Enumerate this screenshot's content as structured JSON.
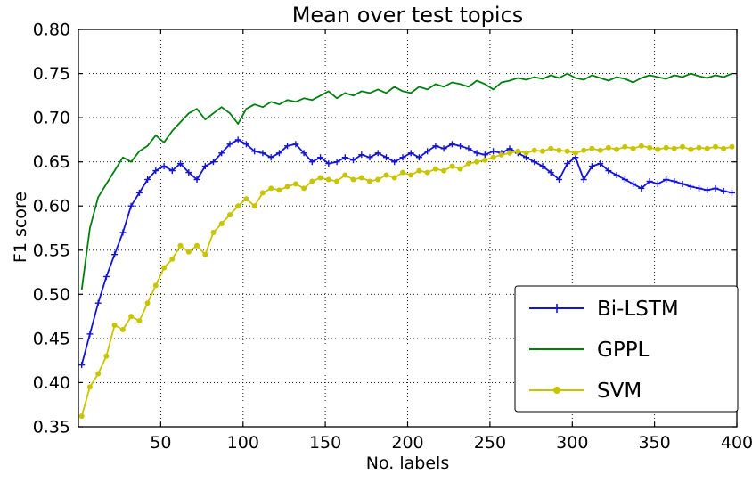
{
  "figure": {
    "background": "#ffffff"
  },
  "chart_data": {
    "type": "line",
    "title": "Mean over test topics",
    "xlabel": "No. labels",
    "ylabel": "F1 score",
    "xlim": [
      0,
      400
    ],
    "ylim": [
      0.35,
      0.8
    ],
    "xticks": [
      50,
      100,
      150,
      200,
      250,
      300,
      350,
      400
    ],
    "yticks": [
      0.35,
      0.4,
      0.45,
      0.5,
      0.55,
      0.6,
      0.65,
      0.7,
      0.75,
      0.8
    ],
    "grid": true,
    "legend_position": "lower right",
    "x": [
      2,
      7,
      12,
      17,
      22,
      27,
      32,
      37,
      42,
      47,
      52,
      57,
      62,
      67,
      72,
      77,
      82,
      87,
      92,
      97,
      102,
      107,
      112,
      117,
      122,
      127,
      132,
      137,
      142,
      147,
      152,
      157,
      162,
      167,
      172,
      177,
      182,
      187,
      192,
      197,
      202,
      207,
      212,
      217,
      222,
      227,
      232,
      237,
      242,
      247,
      252,
      257,
      262,
      267,
      272,
      277,
      282,
      287,
      292,
      297,
      302,
      307,
      312,
      317,
      322,
      327,
      332,
      337,
      342,
      347,
      352,
      357,
      362,
      367,
      372,
      377,
      382,
      387,
      392,
      397
    ],
    "series": [
      {
        "name": "Bi-LSTM",
        "color": "#1414d9",
        "marker": "plus",
        "values": [
          0.42,
          0.455,
          0.49,
          0.52,
          0.545,
          0.57,
          0.6,
          0.615,
          0.63,
          0.64,
          0.645,
          0.64,
          0.648,
          0.638,
          0.63,
          0.645,
          0.65,
          0.66,
          0.67,
          0.675,
          0.67,
          0.662,
          0.66,
          0.655,
          0.66,
          0.668,
          0.67,
          0.66,
          0.65,
          0.655,
          0.648,
          0.65,
          0.655,
          0.652,
          0.658,
          0.655,
          0.66,
          0.655,
          0.65,
          0.655,
          0.66,
          0.655,
          0.662,
          0.668,
          0.665,
          0.67,
          0.668,
          0.665,
          0.66,
          0.658,
          0.662,
          0.66,
          0.665,
          0.66,
          0.655,
          0.65,
          0.645,
          0.638,
          0.63,
          0.648,
          0.655,
          0.63,
          0.645,
          0.648,
          0.64,
          0.635,
          0.63,
          0.625,
          0.62,
          0.628,
          0.625,
          0.63,
          0.628,
          0.625,
          0.622,
          0.62,
          0.618,
          0.62,
          0.617,
          0.615
        ]
      },
      {
        "name": "GPPL",
        "color": "#00800e",
        "marker": "none",
        "values": [
          0.505,
          0.575,
          0.61,
          0.625,
          0.64,
          0.655,
          0.65,
          0.662,
          0.668,
          0.68,
          0.672,
          0.685,
          0.695,
          0.705,
          0.71,
          0.698,
          0.705,
          0.712,
          0.705,
          0.693,
          0.71,
          0.715,
          0.712,
          0.718,
          0.715,
          0.72,
          0.718,
          0.722,
          0.72,
          0.725,
          0.73,
          0.722,
          0.728,
          0.725,
          0.73,
          0.728,
          0.732,
          0.728,
          0.735,
          0.73,
          0.728,
          0.735,
          0.732,
          0.738,
          0.735,
          0.74,
          0.738,
          0.735,
          0.742,
          0.738,
          0.732,
          0.74,
          0.742,
          0.745,
          0.743,
          0.746,
          0.744,
          0.748,
          0.745,
          0.75,
          0.745,
          0.743,
          0.748,
          0.745,
          0.742,
          0.746,
          0.744,
          0.74,
          0.745,
          0.748,
          0.746,
          0.744,
          0.748,
          0.746,
          0.75,
          0.747,
          0.745,
          0.748,
          0.746,
          0.75
        ]
      },
      {
        "name": "SVM",
        "color": "#c9c400",
        "marker": "circle",
        "values": [
          0.362,
          0.395,
          0.41,
          0.43,
          0.465,
          0.46,
          0.475,
          0.47,
          0.49,
          0.51,
          0.53,
          0.54,
          0.555,
          0.548,
          0.555,
          0.545,
          0.57,
          0.58,
          0.59,
          0.6,
          0.608,
          0.6,
          0.615,
          0.62,
          0.618,
          0.622,
          0.625,
          0.62,
          0.628,
          0.632,
          0.63,
          0.628,
          0.635,
          0.63,
          0.632,
          0.628,
          0.63,
          0.635,
          0.632,
          0.638,
          0.635,
          0.64,
          0.638,
          0.642,
          0.64,
          0.645,
          0.642,
          0.648,
          0.65,
          0.652,
          0.655,
          0.658,
          0.66,
          0.662,
          0.66,
          0.663,
          0.662,
          0.665,
          0.663,
          0.662,
          0.66,
          0.663,
          0.665,
          0.663,
          0.666,
          0.664,
          0.667,
          0.665,
          0.668,
          0.666,
          0.664,
          0.666,
          0.665,
          0.667,
          0.664,
          0.666,
          0.665,
          0.667,
          0.665,
          0.667
        ]
      }
    ]
  }
}
